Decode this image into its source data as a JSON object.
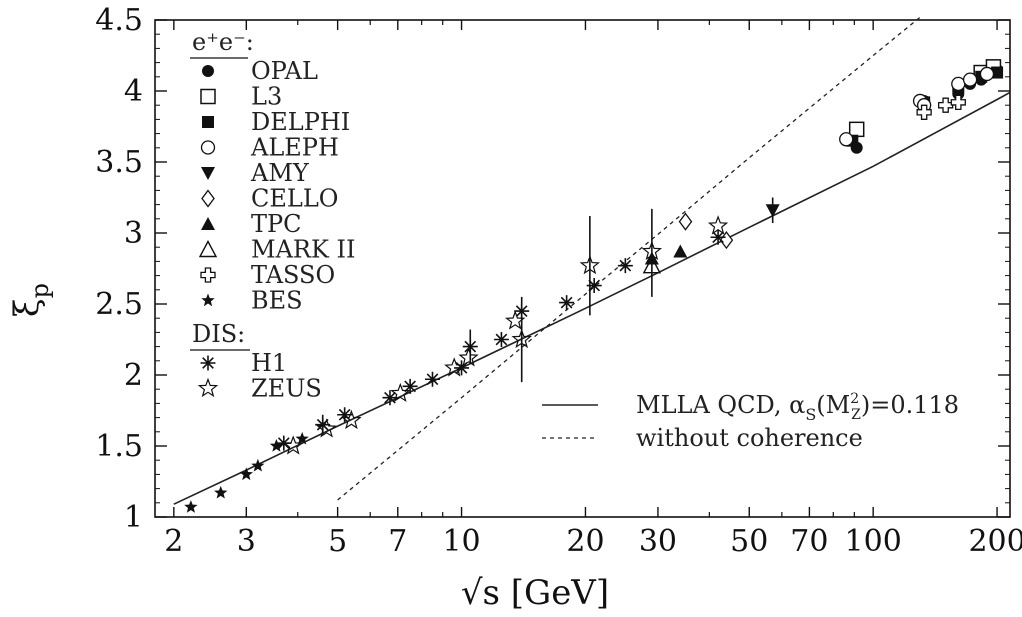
{
  "chart_data": {
    "type": "scatter",
    "xlabel": "√s [GeV]",
    "ylabel": "ξ",
    "ylabel_subscript": "p",
    "xscale": "log",
    "xlim": [
      1.8,
      215
    ],
    "ylim": [
      1,
      4.5
    ],
    "grid": false,
    "legend_placement": "top-left",
    "x_ticks": [
      2,
      3,
      5,
      7,
      10,
      20,
      30,
      50,
      70,
      100,
      200
    ],
    "x_tick_labels": [
      "2",
      "3",
      "5",
      "7",
      "10",
      "20",
      "30",
      "50",
      "70",
      "100",
      "200"
    ],
    "y_ticks": [
      1,
      1.5,
      2,
      2.5,
      3,
      3.5,
      4,
      4.5
    ],
    "y_tick_labels": [
      "1",
      "1.5",
      "2",
      "2.5",
      "3",
      "3.5",
      "4",
      "4.5"
    ],
    "legend_groups": [
      {
        "label": "e⁺e⁻:",
        "entries": [
          "OPAL",
          "L3",
          "DELPHI",
          "ALEPH",
          "AMY",
          "CELLO",
          "TPC",
          "MARK II",
          "TASSO",
          "BES"
        ]
      },
      {
        "label": "DIS:",
        "entries": [
          "H1",
          "ZEUS"
        ]
      }
    ],
    "series": [
      {
        "name": "OPAL",
        "marker": "filled-circle",
        "points": [
          [
            91.2,
            3.6
          ],
          [
            133,
            3.93
          ],
          [
            161,
            3.98
          ],
          [
            172,
            4.05
          ],
          [
            183,
            4.08
          ],
          [
            189,
            4.12
          ],
          [
            200,
            4.15
          ]
        ]
      },
      {
        "name": "L3",
        "marker": "open-square",
        "points": [
          [
            91.2,
            3.73
          ],
          [
            183,
            4.13
          ],
          [
            196,
            4.17
          ]
        ]
      },
      {
        "name": "DELPHI",
        "marker": "filled-square",
        "points": [
          [
            89,
            3.65
          ],
          [
            133,
            3.92
          ],
          [
            161,
            4.03
          ],
          [
            183,
            4.1
          ],
          [
            200,
            4.13
          ]
        ]
      },
      {
        "name": "ALEPH",
        "marker": "open-circle",
        "points": [
          [
            86,
            3.66
          ],
          [
            130,
            3.93
          ],
          [
            133,
            3.9
          ],
          [
            161,
            4.05
          ],
          [
            172,
            4.08
          ],
          [
            189,
            4.12
          ]
        ]
      },
      {
        "name": "AMY",
        "marker": "filled-triangle-down",
        "points": [
          [
            57,
            3.16
          ]
        ]
      },
      {
        "name": "CELLO",
        "marker": "open-diamond",
        "points": [
          [
            35,
            3.08
          ],
          [
            44,
            2.95
          ]
        ]
      },
      {
        "name": "TPC",
        "marker": "filled-triangle-up",
        "points": [
          [
            29,
            2.82
          ],
          [
            34,
            2.87
          ]
        ]
      },
      {
        "name": "MARK II",
        "marker": "open-triangle-up",
        "points": [
          [
            29,
            2.77
          ]
        ]
      },
      {
        "name": "TASSO",
        "marker": "open-cross",
        "points": [
          [
            133,
            3.85
          ],
          [
            150,
            3.9
          ],
          [
            161,
            3.92
          ]
        ]
      },
      {
        "name": "BES",
        "marker": "filled-star",
        "points": [
          [
            2.2,
            1.07
          ],
          [
            2.6,
            1.17
          ],
          [
            3.0,
            1.3
          ],
          [
            3.2,
            1.36
          ],
          [
            3.55,
            1.5
          ],
          [
            4.1,
            1.55
          ]
        ]
      },
      {
        "name": "H1",
        "marker": "asterisk",
        "points": [
          [
            3.7,
            1.52
          ],
          [
            4.6,
            1.65
          ],
          [
            5.2,
            1.72
          ],
          [
            6.7,
            1.84
          ],
          [
            7.5,
            1.92
          ],
          [
            8.5,
            1.97
          ],
          [
            10,
            2.05
          ],
          [
            10.5,
            2.2
          ],
          [
            12.5,
            2.25
          ],
          [
            14,
            2.45
          ],
          [
            18,
            2.51
          ],
          [
            21,
            2.63
          ],
          [
            25,
            2.77
          ],
          [
            42,
            2.97
          ]
        ]
      },
      {
        "name": "ZEUS",
        "marker": "open-star",
        "points": [
          [
            3.9,
            1.5
          ],
          [
            4.7,
            1.62
          ],
          [
            5.4,
            1.68
          ],
          [
            7.1,
            1.87
          ],
          [
            9.6,
            2.05
          ],
          [
            10.4,
            2.12
          ],
          [
            13.5,
            2.38
          ],
          [
            14,
            2.25
          ],
          [
            20.5,
            2.77
          ],
          [
            29,
            2.87
          ],
          [
            42,
            3.05
          ]
        ]
      }
    ],
    "error_bars": [
      {
        "x": 10.5,
        "y": 2.2,
        "lo": 2.08,
        "hi": 2.32
      },
      {
        "x": 14,
        "y": 2.25,
        "lo": 1.95,
        "hi": 2.55
      },
      {
        "x": 20.5,
        "y": 2.77,
        "lo": 2.42,
        "hi": 3.12
      },
      {
        "x": 29,
        "y": 2.87,
        "lo": 2.55,
        "hi": 3.17
      },
      {
        "x": 57,
        "y": 3.16,
        "lo": 3.07,
        "hi": 3.25
      },
      {
        "x": 4.6,
        "y": 1.65,
        "lo": 1.58,
        "hi": 1.72
      }
    ],
    "curves": [
      {
        "name": "MLLA QCD, αS(M²Z)=0.118",
        "style": "solid",
        "points": [
          [
            2,
            1.09
          ],
          [
            3,
            1.33
          ],
          [
            5,
            1.64
          ],
          [
            10,
            2.05
          ],
          [
            20,
            2.47
          ],
          [
            30,
            2.72
          ],
          [
            50,
            3.04
          ],
          [
            100,
            3.47
          ],
          [
            200,
            3.94
          ],
          [
            215,
            3.99
          ]
        ]
      },
      {
        "name": "without coherence",
        "style": "dashed",
        "points": [
          [
            5,
            1.12
          ],
          [
            10,
            1.84
          ],
          [
            20,
            2.57
          ],
          [
            30,
            2.99
          ],
          [
            50,
            3.53
          ],
          [
            100,
            4.25
          ],
          [
            130,
            4.52
          ]
        ]
      }
    ],
    "curve_legend": [
      {
        "label_main": "MLLA QCD, α",
        "label_sub": "S",
        "label_paren_open": "(M",
        "label_sup": "2",
        "label_sub2": "Z",
        "label_end": ")=0.118",
        "style": "solid"
      },
      {
        "label_main": "without coherence",
        "style": "dashed"
      }
    ]
  }
}
